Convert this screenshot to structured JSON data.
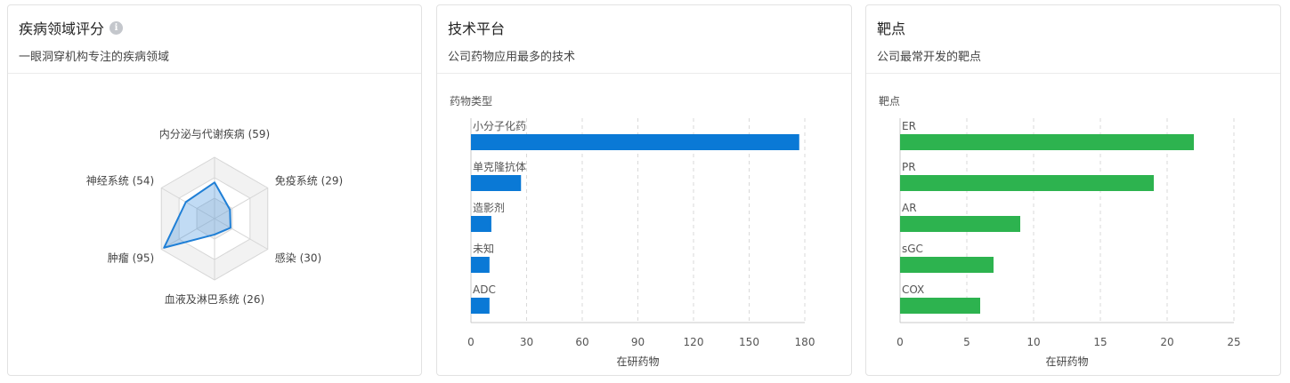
{
  "panels": [
    {
      "title": "疾病领域评分",
      "subtitle": "一眼洞穿机构专注的疾病领域",
      "info_icon": "info-icon"
    },
    {
      "title": "技术平台",
      "subtitle": "公司药物应用最多的技术"
    },
    {
      "title": "靶点",
      "subtitle": "公司最常开发的靶点"
    }
  ],
  "chart_data": [
    {
      "type": "radar",
      "categories": [
        "内分泌与代谢疾病",
        "免疫系统",
        "感染",
        "血液及淋巴系统",
        "肿瘤",
        "神经系统"
      ],
      "values": [
        59,
        29,
        30,
        26,
        95,
        54
      ],
      "labels": [
        "内分泌与代谢疾病 (59)",
        "免疫系统 (29)",
        "感染 (30)",
        "血液及淋巴系统 (26)",
        "肿瘤 (95)",
        "神经系统 (54)"
      ],
      "max": 100,
      "grid_levels": 3,
      "color": "#1f7fd6",
      "fill": "rgba(31,127,214,0.28)"
    },
    {
      "type": "bar",
      "orientation": "horizontal",
      "categories": [
        "小分子化药",
        "单克隆抗体",
        "造影剂",
        "未知",
        "ADC"
      ],
      "values": [
        177,
        27,
        11,
        10,
        10
      ],
      "ylabel": "药物类型",
      "xlabel": "在研药物",
      "xlim": [
        0,
        180
      ],
      "ticks": [
        0,
        30,
        60,
        90,
        120,
        150,
        180
      ],
      "color": "#0a79d6",
      "grid": true
    },
    {
      "type": "bar",
      "orientation": "horizontal",
      "categories": [
        "ER",
        "PR",
        "AR",
        "sGC",
        "COX"
      ],
      "values": [
        22,
        19,
        9,
        7,
        6
      ],
      "ylabel": "靶点",
      "xlabel": "在研药物",
      "xlim": [
        0,
        25
      ],
      "ticks": [
        0,
        5,
        10,
        15,
        20,
        25
      ],
      "color": "#2db34f",
      "grid": true
    }
  ]
}
